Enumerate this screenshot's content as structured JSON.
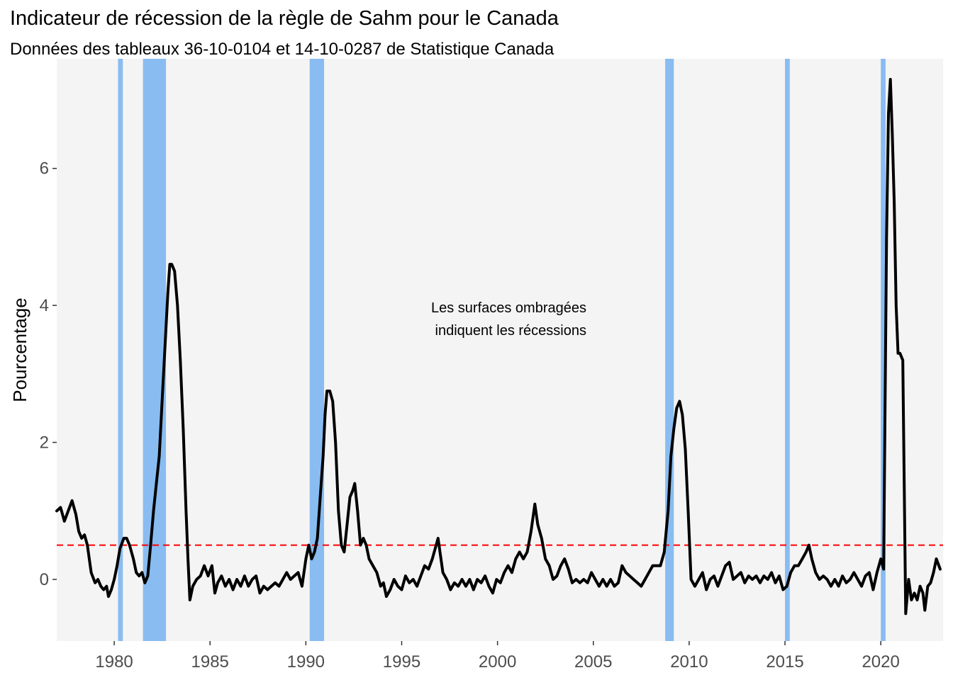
{
  "chart_data": {
    "type": "line",
    "title": "Indicateur de récession de la règle de Sahm pour le Canada",
    "subtitle": "Données des tableaux 36-10-0104 et 14-10-0287 de Statistique Canada",
    "xlabel": "",
    "ylabel": "Pourcentage",
    "xlim": [
      1977.0,
      2023.25
    ],
    "ylim": [
      -0.9,
      7.6
    ],
    "x_ticks": [
      1980,
      1985,
      1990,
      1995,
      2000,
      2005,
      2010,
      2015,
      2020
    ],
    "y_ticks": [
      0,
      2,
      4,
      6
    ],
    "grid": false,
    "threshold": {
      "value": 0.5,
      "color": "#ff0000",
      "style": "dashed"
    },
    "recessions": [
      [
        1980.2,
        1980.45
      ],
      [
        1981.5,
        1982.7
      ],
      [
        1990.2,
        1990.95
      ],
      [
        2008.75,
        2009.2
      ],
      [
        2015.0,
        2015.25
      ],
      [
        2020.0,
        2020.25
      ]
    ],
    "annotation": [
      "Les surfaces ombragées",
      "indiquent les récessions"
    ],
    "colors": {
      "line": "#000000",
      "recession": "#89bcf1",
      "panel": "#f4f4f4"
    },
    "series": [
      {
        "points": [
          [
            1977.0,
            1.0
          ],
          [
            1977.2,
            1.05
          ],
          [
            1977.4,
            0.85
          ],
          [
            1977.6,
            1.0
          ],
          [
            1977.8,
            1.15
          ],
          [
            1978.0,
            0.95
          ],
          [
            1978.15,
            0.7
          ],
          [
            1978.3,
            0.6
          ],
          [
            1978.45,
            0.65
          ],
          [
            1978.6,
            0.5
          ],
          [
            1978.8,
            0.1
          ],
          [
            1979.0,
            -0.05
          ],
          [
            1979.15,
            0.0
          ],
          [
            1979.3,
            -0.1
          ],
          [
            1979.45,
            -0.15
          ],
          [
            1979.6,
            -0.1
          ],
          [
            1979.7,
            -0.25
          ],
          [
            1979.85,
            -0.15
          ],
          [
            1980.0,
            0.0
          ],
          [
            1980.15,
            0.2
          ],
          [
            1980.3,
            0.45
          ],
          [
            1980.5,
            0.6
          ],
          [
            1980.65,
            0.6
          ],
          [
            1980.8,
            0.5
          ],
          [
            1981.0,
            0.3
          ],
          [
            1981.15,
            0.1
          ],
          [
            1981.3,
            0.05
          ],
          [
            1981.45,
            0.1
          ],
          [
            1981.6,
            -0.05
          ],
          [
            1981.75,
            0.05
          ],
          [
            1981.9,
            0.5
          ],
          [
            1982.05,
            1.0
          ],
          [
            1982.2,
            1.4
          ],
          [
            1982.35,
            1.8
          ],
          [
            1982.5,
            2.6
          ],
          [
            1982.65,
            3.4
          ],
          [
            1982.8,
            4.2
          ],
          [
            1982.9,
            4.6
          ],
          [
            1983.0,
            4.6
          ],
          [
            1983.15,
            4.5
          ],
          [
            1983.3,
            4.0
          ],
          [
            1983.45,
            3.2
          ],
          [
            1983.6,
            2.2
          ],
          [
            1983.75,
            1.0
          ],
          [
            1983.85,
            0.3
          ],
          [
            1983.95,
            -0.3
          ],
          [
            1984.1,
            -0.1
          ],
          [
            1984.3,
            0.0
          ],
          [
            1984.5,
            0.05
          ],
          [
            1984.7,
            0.2
          ],
          [
            1984.9,
            0.05
          ],
          [
            1985.1,
            0.2
          ],
          [
            1985.25,
            -0.2
          ],
          [
            1985.4,
            -0.05
          ],
          [
            1985.6,
            0.05
          ],
          [
            1985.8,
            -0.1
          ],
          [
            1986.0,
            0.0
          ],
          [
            1986.2,
            -0.15
          ],
          [
            1986.4,
            0.0
          ],
          [
            1986.6,
            -0.1
          ],
          [
            1986.8,
            0.05
          ],
          [
            1987.0,
            -0.1
          ],
          [
            1987.2,
            0.0
          ],
          [
            1987.4,
            0.05
          ],
          [
            1987.6,
            -0.2
          ],
          [
            1987.8,
            -0.1
          ],
          [
            1988.0,
            -0.15
          ],
          [
            1988.2,
            -0.1
          ],
          [
            1988.4,
            -0.05
          ],
          [
            1988.6,
            -0.1
          ],
          [
            1988.8,
            0.0
          ],
          [
            1989.0,
            0.1
          ],
          [
            1989.2,
            0.0
          ],
          [
            1989.4,
            0.05
          ],
          [
            1989.6,
            0.1
          ],
          [
            1989.8,
            -0.1
          ],
          [
            1990.0,
            0.3
          ],
          [
            1990.15,
            0.5
          ],
          [
            1990.3,
            0.3
          ],
          [
            1990.45,
            0.4
          ],
          [
            1990.6,
            0.6
          ],
          [
            1990.75,
            1.2
          ],
          [
            1990.9,
            1.8
          ],
          [
            1991.0,
            2.4
          ],
          [
            1991.1,
            2.75
          ],
          [
            1991.25,
            2.75
          ],
          [
            1991.4,
            2.6
          ],
          [
            1991.55,
            2.0
          ],
          [
            1991.7,
            1.0
          ],
          [
            1991.85,
            0.5
          ],
          [
            1992.0,
            0.4
          ],
          [
            1992.15,
            0.8
          ],
          [
            1992.3,
            1.2
          ],
          [
            1992.45,
            1.3
          ],
          [
            1992.55,
            1.4
          ],
          [
            1992.7,
            1.0
          ],
          [
            1992.85,
            0.5
          ],
          [
            1993.0,
            0.6
          ],
          [
            1993.15,
            0.5
          ],
          [
            1993.3,
            0.3
          ],
          [
            1993.5,
            0.2
          ],
          [
            1993.7,
            0.1
          ],
          [
            1993.9,
            -0.1
          ],
          [
            1994.05,
            -0.05
          ],
          [
            1994.2,
            -0.25
          ],
          [
            1994.4,
            -0.15
          ],
          [
            1994.6,
            0.0
          ],
          [
            1994.8,
            -0.1
          ],
          [
            1995.0,
            -0.15
          ],
          [
            1995.2,
            0.05
          ],
          [
            1995.4,
            -0.05
          ],
          [
            1995.6,
            0.0
          ],
          [
            1995.8,
            -0.1
          ],
          [
            1996.0,
            0.05
          ],
          [
            1996.2,
            0.2
          ],
          [
            1996.4,
            0.15
          ],
          [
            1996.6,
            0.3
          ],
          [
            1996.8,
            0.5
          ],
          [
            1996.9,
            0.6
          ],
          [
            1997.0,
            0.4
          ],
          [
            1997.15,
            0.1
          ],
          [
            1997.35,
            0.0
          ],
          [
            1997.55,
            -0.15
          ],
          [
            1997.75,
            -0.05
          ],
          [
            1997.95,
            -0.1
          ],
          [
            1998.15,
            0.0
          ],
          [
            1998.35,
            -0.1
          ],
          [
            1998.55,
            0.0
          ],
          [
            1998.75,
            -0.15
          ],
          [
            1998.95,
            0.0
          ],
          [
            1999.15,
            -0.05
          ],
          [
            1999.35,
            0.05
          ],
          [
            1999.55,
            -0.1
          ],
          [
            1999.75,
            -0.2
          ],
          [
            1999.95,
            0.0
          ],
          [
            2000.15,
            -0.05
          ],
          [
            2000.35,
            0.1
          ],
          [
            2000.55,
            0.2
          ],
          [
            2000.75,
            0.1
          ],
          [
            2000.95,
            0.3
          ],
          [
            2001.15,
            0.4
          ],
          [
            2001.35,
            0.3
          ],
          [
            2001.55,
            0.4
          ],
          [
            2001.75,
            0.7
          ],
          [
            2001.95,
            1.1
          ],
          [
            2002.1,
            0.8
          ],
          [
            2002.3,
            0.6
          ],
          [
            2002.5,
            0.3
          ],
          [
            2002.7,
            0.2
          ],
          [
            2002.9,
            0.0
          ],
          [
            2003.1,
            0.05
          ],
          [
            2003.3,
            0.2
          ],
          [
            2003.5,
            0.3
          ],
          [
            2003.7,
            0.15
          ],
          [
            2003.9,
            -0.05
          ],
          [
            2004.1,
            0.0
          ],
          [
            2004.3,
            -0.05
          ],
          [
            2004.5,
            0.0
          ],
          [
            2004.7,
            -0.05
          ],
          [
            2004.9,
            0.1
          ],
          [
            2005.1,
            0.0
          ],
          [
            2005.3,
            -0.1
          ],
          [
            2005.5,
            0.0
          ],
          [
            2005.7,
            -0.1
          ],
          [
            2005.9,
            0.0
          ],
          [
            2006.1,
            -0.1
          ],
          [
            2006.3,
            -0.05
          ],
          [
            2006.5,
            0.2
          ],
          [
            2006.7,
            0.1
          ],
          [
            2006.9,
            0.05
          ],
          [
            2007.1,
            0.0
          ],
          [
            2007.3,
            -0.05
          ],
          [
            2007.5,
            -0.1
          ],
          [
            2007.7,
            0.0
          ],
          [
            2007.9,
            0.1
          ],
          [
            2008.1,
            0.2
          ],
          [
            2008.3,
            0.2
          ],
          [
            2008.5,
            0.2
          ],
          [
            2008.7,
            0.4
          ],
          [
            2008.9,
            1.0
          ],
          [
            2009.05,
            1.8
          ],
          [
            2009.2,
            2.2
          ],
          [
            2009.35,
            2.5
          ],
          [
            2009.5,
            2.6
          ],
          [
            2009.65,
            2.4
          ],
          [
            2009.8,
            1.9
          ],
          [
            2009.95,
            1.0
          ],
          [
            2010.1,
            0.0
          ],
          [
            2010.3,
            -0.1
          ],
          [
            2010.5,
            0.0
          ],
          [
            2010.7,
            0.1
          ],
          [
            2010.9,
            -0.15
          ],
          [
            2011.1,
            0.0
          ],
          [
            2011.3,
            0.05
          ],
          [
            2011.5,
            -0.1
          ],
          [
            2011.7,
            0.05
          ],
          [
            2011.9,
            0.2
          ],
          [
            2012.1,
            0.25
          ],
          [
            2012.3,
            0.0
          ],
          [
            2012.5,
            0.05
          ],
          [
            2012.7,
            0.1
          ],
          [
            2012.9,
            -0.05
          ],
          [
            2013.1,
            0.05
          ],
          [
            2013.3,
            0.0
          ],
          [
            2013.5,
            0.05
          ],
          [
            2013.7,
            -0.05
          ],
          [
            2013.9,
            0.05
          ],
          [
            2014.1,
            0.0
          ],
          [
            2014.3,
            0.1
          ],
          [
            2014.5,
            -0.05
          ],
          [
            2014.7,
            0.05
          ],
          [
            2014.9,
            -0.15
          ],
          [
            2015.1,
            -0.1
          ],
          [
            2015.3,
            0.1
          ],
          [
            2015.5,
            0.2
          ],
          [
            2015.7,
            0.2
          ],
          [
            2015.9,
            0.3
          ],
          [
            2016.1,
            0.4
          ],
          [
            2016.25,
            0.5
          ],
          [
            2016.4,
            0.3
          ],
          [
            2016.6,
            0.1
          ],
          [
            2016.8,
            0.0
          ],
          [
            2017.0,
            0.05
          ],
          [
            2017.2,
            0.0
          ],
          [
            2017.4,
            -0.1
          ],
          [
            2017.6,
            0.0
          ],
          [
            2017.8,
            -0.1
          ],
          [
            2018.0,
            0.05
          ],
          [
            2018.2,
            -0.05
          ],
          [
            2018.4,
            0.0
          ],
          [
            2018.6,
            0.1
          ],
          [
            2018.8,
            0.0
          ],
          [
            2019.0,
            -0.1
          ],
          [
            2019.2,
            0.05
          ],
          [
            2019.4,
            0.1
          ],
          [
            2019.6,
            -0.15
          ],
          [
            2019.8,
            0.1
          ],
          [
            2020.0,
            0.3
          ],
          [
            2020.15,
            0.15
          ],
          [
            2020.3,
            5.0
          ],
          [
            2020.4,
            6.8
          ],
          [
            2020.5,
            7.3
          ],
          [
            2020.6,
            6.5
          ],
          [
            2020.7,
            5.5
          ],
          [
            2020.8,
            4.0
          ],
          [
            2020.9,
            3.3
          ],
          [
            2021.0,
            3.3
          ],
          [
            2021.15,
            3.2
          ],
          [
            2021.3,
            -0.5
          ],
          [
            2021.45,
            0.0
          ],
          [
            2021.6,
            -0.3
          ],
          [
            2021.75,
            -0.2
          ],
          [
            2021.9,
            -0.3
          ],
          [
            2022.05,
            -0.1
          ],
          [
            2022.2,
            -0.2
          ],
          [
            2022.3,
            -0.45
          ],
          [
            2022.45,
            -0.1
          ],
          [
            2022.6,
            -0.05
          ],
          [
            2022.75,
            0.1
          ],
          [
            2022.9,
            0.3
          ],
          [
            2023.1,
            0.15
          ]
        ]
      }
    ]
  }
}
